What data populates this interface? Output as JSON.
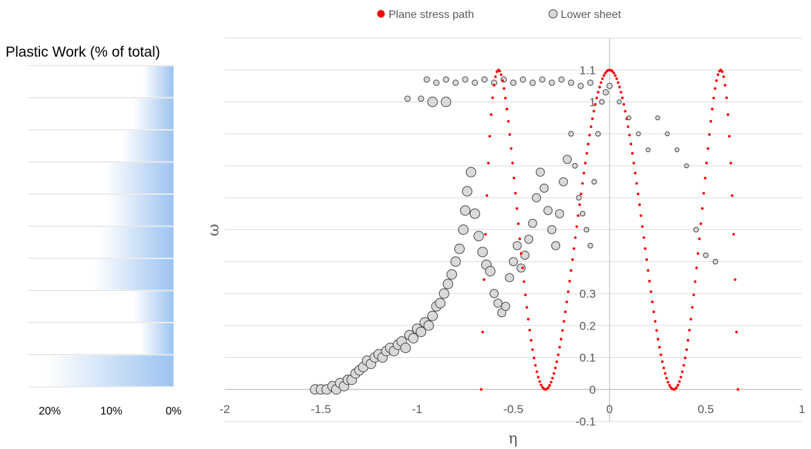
{
  "chart_data": [
    {
      "type": "bar",
      "orientation": "horizontal",
      "title": "Plastic Work (% of total)",
      "x_ticks": [
        "20%",
        "10%",
        "0%"
      ],
      "xlim": [
        0,
        22
      ],
      "axis_reversed": true,
      "values": [
        4.9,
        6.6,
        8.3,
        11.0,
        10.5,
        11.8,
        12.9,
        6.6,
        5.4,
        20.5
      ],
      "bar_color": "#9DC3F0",
      "grid": true
    },
    {
      "type": "scatter",
      "xlabel": "η",
      "ylabel": "ω",
      "xlim": [
        -2,
        1
      ],
      "ylim": [
        -0.1,
        1.1
      ],
      "x_ticks": [
        "-2",
        "-1.5",
        "-1",
        "-0.5",
        "0",
        "0.5",
        "1"
      ],
      "y_ticks": [
        "-0.1",
        "0",
        "0.1",
        "0.2",
        "0.3",
        "",
        "",
        "",
        "",
        "",
        "1",
        "1.1"
      ],
      "grid": true,
      "legend_position": "top",
      "legend": [
        {
          "name": "Plane stress path",
          "color": "#FF0000"
        },
        {
          "name": "Lower sheet",
          "color": "#D9D9D9"
        }
      ],
      "series": [
        {
          "name": "Plane stress path",
          "color": "#FF0000",
          "x_range": [
            -0.667,
            0.667
          ],
          "description_points": [
            [
              -0.667,
              0
            ],
            [
              -0.577,
              1
            ],
            [
              -0.333,
              0
            ],
            [
              0,
              1
            ],
            [
              0.333,
              0
            ],
            [
              0.577,
              1
            ],
            [
              0.667,
              0
            ]
          ]
        },
        {
          "name": "Lower sheet",
          "color": "#D9D9D9",
          "points": [
            [
              -1.53,
              0.0
            ],
            [
              -1.5,
              0.0
            ],
            [
              -1.47,
              0.0
            ],
            [
              -1.44,
              0.01
            ],
            [
              -1.42,
              0.0
            ],
            [
              -1.4,
              0.02
            ],
            [
              -1.38,
              0.01
            ],
            [
              -1.36,
              0.03
            ],
            [
              -1.34,
              0.03
            ],
            [
              -1.32,
              0.05
            ],
            [
              -1.3,
              0.06
            ],
            [
              -1.28,
              0.07
            ],
            [
              -1.26,
              0.09
            ],
            [
              -1.24,
              0.08
            ],
            [
              -1.22,
              0.1
            ],
            [
              -1.2,
              0.11
            ],
            [
              -1.18,
              0.1
            ],
            [
              -1.16,
              0.12
            ],
            [
              -1.14,
              0.13
            ],
            [
              -1.12,
              0.12
            ],
            [
              -1.1,
              0.14
            ],
            [
              -1.08,
              0.15
            ],
            [
              -1.06,
              0.13
            ],
            [
              -1.04,
              0.17
            ],
            [
              -1.02,
              0.16
            ],
            [
              -1.0,
              0.19
            ],
            [
              -0.98,
              0.18
            ],
            [
              -0.96,
              0.21
            ],
            [
              -0.94,
              0.2
            ],
            [
              -0.92,
              0.23
            ],
            [
              -0.9,
              0.26
            ],
            [
              -0.88,
              0.27
            ],
            [
              -0.86,
              0.3
            ],
            [
              -0.84,
              0.33
            ],
            [
              -0.82,
              0.36
            ],
            [
              -0.8,
              0.4
            ],
            [
              -0.78,
              0.44
            ],
            [
              -0.76,
              0.5
            ],
            [
              -0.75,
              0.56
            ],
            [
              -0.74,
              0.62
            ],
            [
              -0.72,
              0.68
            ],
            [
              -0.7,
              0.55
            ],
            [
              -0.68,
              0.48
            ],
            [
              -0.66,
              0.43
            ],
            [
              -0.64,
              0.39
            ],
            [
              -0.62,
              0.37
            ],
            [
              -0.6,
              0.3
            ],
            [
              -0.58,
              0.27
            ],
            [
              -0.56,
              0.24
            ],
            [
              -0.54,
              0.26
            ],
            [
              -0.52,
              0.35
            ],
            [
              -0.5,
              0.4
            ],
            [
              -0.48,
              0.45
            ],
            [
              -0.46,
              0.38
            ],
            [
              -0.44,
              0.42
            ],
            [
              -0.42,
              0.47
            ],
            [
              -0.4,
              0.52
            ],
            [
              -0.38,
              0.6
            ],
            [
              -0.36,
              0.68
            ],
            [
              -0.34,
              0.63
            ],
            [
              -0.32,
              0.56
            ],
            [
              -0.3,
              0.5
            ],
            [
              -0.28,
              0.45
            ],
            [
              -0.26,
              0.55
            ],
            [
              -0.24,
              0.65
            ],
            [
              -0.22,
              0.72
            ],
            [
              -0.2,
              0.8
            ],
            [
              -0.18,
              0.7
            ],
            [
              -0.16,
              0.6
            ],
            [
              -0.14,
              0.55
            ],
            [
              -0.12,
              0.5
            ],
            [
              -0.1,
              0.45
            ],
            [
              -0.08,
              0.65
            ],
            [
              -0.06,
              0.8
            ],
            [
              -0.04,
              0.9
            ],
            [
              -0.02,
              0.93
            ],
            [
              0.0,
              0.95
            ],
            [
              0.05,
              0.9
            ],
            [
              0.1,
              0.85
            ],
            [
              0.15,
              0.8
            ],
            [
              0.2,
              0.75
            ],
            [
              0.25,
              0.85
            ],
            [
              0.3,
              0.8
            ],
            [
              0.35,
              0.75
            ],
            [
              0.4,
              0.7
            ],
            [
              0.45,
              0.5
            ],
            [
              0.5,
              0.42
            ],
            [
              0.55,
              0.4
            ],
            [
              -0.95,
              0.97
            ],
            [
              -0.9,
              0.96
            ],
            [
              -0.85,
              0.97
            ],
            [
              -0.8,
              0.96
            ],
            [
              -0.75,
              0.97
            ],
            [
              -0.7,
              0.96
            ],
            [
              -0.65,
              0.97
            ],
            [
              -0.6,
              0.96
            ],
            [
              -0.55,
              0.97
            ],
            [
              -0.5,
              0.96
            ],
            [
              -0.45,
              0.97
            ],
            [
              -0.4,
              0.96
            ],
            [
              -0.35,
              0.97
            ],
            [
              -0.3,
              0.96
            ],
            [
              -0.25,
              0.97
            ],
            [
              -0.2,
              0.96
            ],
            [
              -0.15,
              0.95
            ],
            [
              -0.1,
              0.96
            ],
            [
              -1.05,
              0.91
            ],
            [
              -0.98,
              0.91
            ],
            [
              -0.92,
              0.9
            ],
            [
              -0.85,
              0.9
            ]
          ],
          "marker_size": "variable"
        }
      ]
    }
  ]
}
